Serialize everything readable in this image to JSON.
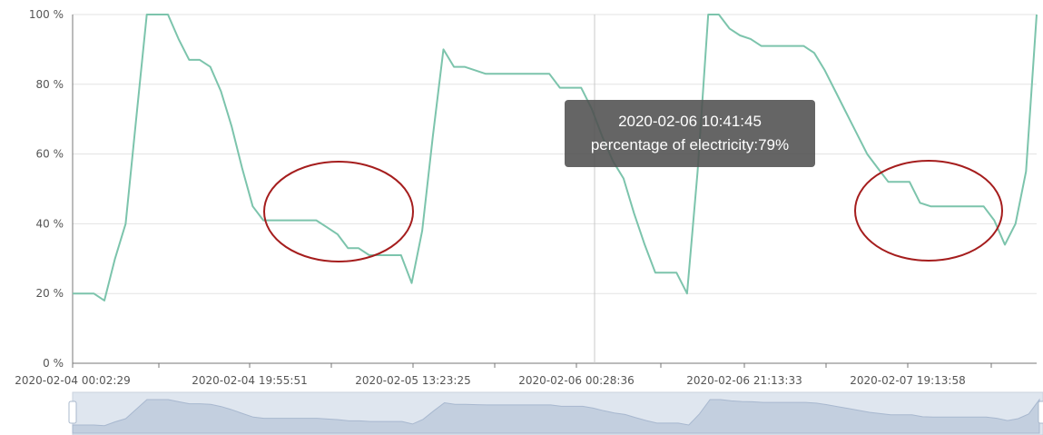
{
  "chart_data": {
    "type": "line",
    "title": "",
    "xlabel": "",
    "ylabel": "",
    "ylim": [
      0,
      100
    ],
    "y_ticks": [
      "0 %",
      "20 %",
      "40 %",
      "60 %",
      "80 %",
      "100 %"
    ],
    "x_tick_labels": [
      "2020-02-04 00:02:29",
      "2020-02-04 19:55:51",
      "2020-02-05 13:23:25",
      "2020-02-06 00:28:36",
      "2020-02-06 21:13:33",
      "2020-02-07 19:13:58"
    ],
    "grid": true,
    "series": [
      {
        "color": "#7cc4ac",
        "x": [
          0,
          1,
          2,
          3,
          4,
          5,
          6,
          7,
          8,
          9,
          10,
          11,
          12,
          13,
          14,
          15,
          16,
          17,
          18,
          19,
          20,
          21,
          22,
          23,
          24,
          25,
          26,
          27,
          28,
          29,
          30,
          31,
          32,
          33,
          34,
          35,
          36,
          37,
          38,
          39,
          40,
          41,
          42,
          43,
          44,
          45,
          46,
          47,
          48,
          49,
          50,
          51,
          52,
          53,
          54,
          55,
          56,
          57,
          58,
          59,
          60,
          61,
          62,
          63,
          64,
          65,
          66,
          67,
          68,
          69,
          70,
          71,
          72,
          73,
          74,
          75,
          76,
          77,
          78,
          79,
          80,
          81,
          82,
          83,
          84,
          85,
          86,
          87,
          88,
          89,
          90,
          91
        ],
        "values": [
          20,
          20,
          20,
          18,
          30,
          40,
          70,
          100,
          100,
          100,
          93,
          87,
          87,
          85,
          78,
          68,
          56,
          45,
          41,
          41,
          41,
          41,
          41,
          41,
          39,
          37,
          33,
          33,
          31,
          31,
          31,
          31,
          23,
          38,
          65,
          90,
          85,
          85,
          84,
          83,
          83,
          83,
          83,
          83,
          83,
          83,
          79,
          79,
          79,
          73,
          65,
          58,
          53,
          43,
          34,
          26,
          26,
          26,
          20,
          55,
          100,
          100,
          96,
          94,
          93,
          91,
          91,
          91,
          91,
          91,
          89,
          84,
          78,
          72,
          66,
          60,
          56,
          52,
          52,
          52,
          46,
          45,
          45,
          45,
          45,
          45,
          45,
          41,
          34,
          40,
          55,
          100
        ]
      }
    ],
    "tooltip": {
      "time": "2020-02-06 10:41:45",
      "text": "percentage of electricity:79%"
    },
    "annotations": [
      "ellipse-highlight",
      "ellipse-highlight"
    ]
  }
}
